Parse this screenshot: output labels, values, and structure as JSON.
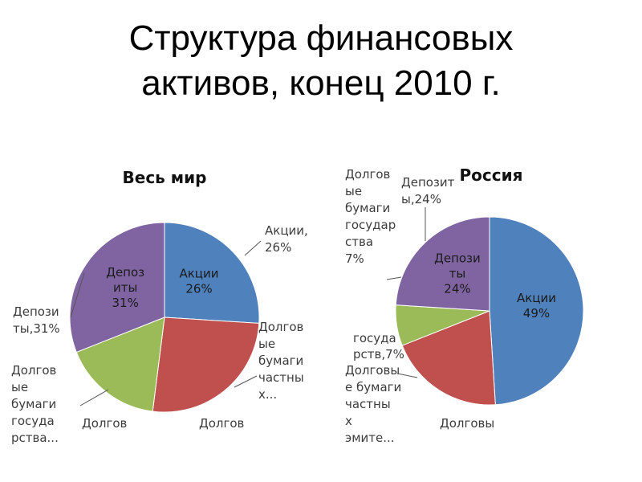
{
  "title_line1": "Структура финансовых",
  "title_line2": "активов, конец 2010 г.",
  "chart_data": [
    {
      "type": "pie",
      "title": "Весь мир",
      "slices": [
        {
          "name": "Акции",
          "value": 26,
          "color": "#4f81bd",
          "inside": [
            "Акции",
            "26%"
          ],
          "outside": [
            "Акции,",
            "26%"
          ]
        },
        {
          "name": "Долговые бумаги частных...",
          "value": 26,
          "color": "#c0504d",
          "outside": [
            "Долгов",
            "ые",
            "бумаги",
            "частны",
            "х..."
          ]
        },
        {
          "name": "Долговые бумаги государства...",
          "value": 17,
          "color": "#9bbb59",
          "outside": [
            "Долгов",
            "ые",
            "бумаги",
            "госуда",
            "рства..."
          ]
        },
        {
          "name": "Депозиты",
          "value": 31,
          "color": "#8064a2",
          "inside": [
            "Депоз",
            "иты",
            "31%"
          ],
          "outside": [
            "Депози",
            "ты,31%"
          ]
        }
      ],
      "bottom_labels": [
        "Долгов",
        "Долгов"
      ]
    },
    {
      "type": "pie",
      "title": "Россия",
      "slices": [
        {
          "name": "Акции",
          "value": 49,
          "color": "#4f81bd",
          "inside": [
            "Акции",
            "49%"
          ]
        },
        {
          "name": "Долговые бумаги частных эмитентов",
          "value": 20,
          "color": "#c0504d",
          "outside": [
            "Долговы",
            "е бумаги",
            "частны",
            "х",
            "эмите..."
          ]
        },
        {
          "name": "Долговые бумаги государства",
          "value": 7,
          "color": "#9bbb59",
          "outside": [
            "Долгов",
            "ые",
            "бумаги",
            "государ",
            "ства",
            "7%"
          ]
        },
        {
          "name": "Депозиты",
          "value": 24,
          "color": "#8064a2",
          "inside": [
            "Депози",
            "ты",
            "24%"
          ],
          "outside": [
            "Депозит",
            "ы,24%"
          ]
        }
      ],
      "bottom_labels": [
        "Долговы"
      ],
      "extra_labels": [
        "госуда",
        "рств,7%"
      ]
    }
  ]
}
